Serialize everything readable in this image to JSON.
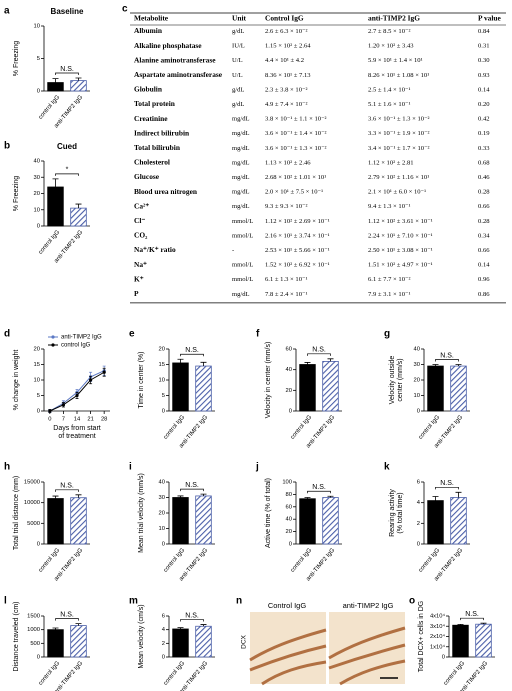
{
  "chart_data": [
    {
      "type": "bar",
      "panel": "a",
      "title": "Baseline",
      "ylabel": "% Freezing",
      "categories": [
        "control IgG",
        "anti-TIMP2 IgG"
      ],
      "values": [
        1.3,
        1.6
      ],
      "errors": [
        0.6,
        0.4
      ],
      "colors": [
        "#000000",
        "#4a5ea8"
      ],
      "ylim": [
        0,
        10
      ],
      "yticks": [
        0,
        5,
        10
      ],
      "annotation": "N.S."
    },
    {
      "type": "bar",
      "panel": "b",
      "title": "Cued",
      "ylabel": "% Freezing",
      "categories": [
        "control IgG",
        "anti-TIMP2 IgG"
      ],
      "values": [
        24,
        11
      ],
      "errors": [
        5,
        2.5
      ],
      "colors": [
        "#000000",
        "#4a5ea8"
      ],
      "ylim": [
        0,
        40
      ],
      "yticks": [
        0,
        10,
        20,
        30,
        40
      ],
      "annotation": "*"
    },
    {
      "type": "line",
      "panel": "d",
      "ylabel": "% change in weight",
      "xlabel": [
        "Days from start",
        "of treatment"
      ],
      "x": [
        0,
        7,
        14,
        21,
        28
      ],
      "xlim": [
        -3,
        31
      ],
      "xticks": [
        0,
        7,
        14,
        21,
        28
      ],
      "ylim": [
        0,
        20
      ],
      "yticks": [
        0,
        5,
        10,
        15,
        20
      ],
      "legend": "upper left",
      "series": [
        {
          "name": "anti-TIMP2 IgG",
          "color": "#5b78c4",
          "values": [
            0,
            2.5,
            6,
            11,
            13
          ],
          "errors": [
            0.5,
            0.8,
            1,
            1.5,
            1.5
          ]
        },
        {
          "name": "control IgG",
          "color": "#000000",
          "values": [
            0,
            2,
            5,
            10,
            12.5
          ],
          "errors": [
            0.5,
            0.7,
            1,
            1.2,
            1.3
          ]
        }
      ]
    },
    {
      "type": "bar",
      "panel": "e",
      "ylabel": "Time in center (%)",
      "categories": [
        "control IgG",
        "anti-TIMP2 IgG"
      ],
      "values": [
        15.5,
        14.5
      ],
      "errors": [
        1.2,
        1.2
      ],
      "colors": [
        "#000000",
        "#4a5ea8"
      ],
      "ylim": [
        0,
        20
      ],
      "yticks": [
        0,
        5,
        10,
        15,
        20
      ],
      "annotation": "N.S."
    },
    {
      "type": "bar",
      "panel": "f",
      "ylabel": "Velocity in center (mm/s)",
      "categories": [
        "control IgG",
        "anti-TIMP2 IgG"
      ],
      "values": [
        45,
        48
      ],
      "errors": [
        2,
        2.5
      ],
      "colors": [
        "#000000",
        "#4a5ea8"
      ],
      "ylim": [
        0,
        60
      ],
      "yticks": [
        0,
        20,
        40,
        60
      ],
      "annotation": "N.S."
    },
    {
      "type": "bar",
      "panel": "g",
      "ylabel": [
        "Velocity outside",
        "center (mm/s)"
      ],
      "categories": [
        "control IgG",
        "anti-TIMP2 IgG"
      ],
      "values": [
        29,
        29
      ],
      "errors": [
        1,
        1
      ],
      "colors": [
        "#000000",
        "#4a5ea8"
      ],
      "ylim": [
        0,
        40
      ],
      "yticks": [
        0,
        10,
        20,
        30,
        40
      ],
      "annotation": "N.S."
    },
    {
      "type": "bar",
      "panel": "h",
      "ylabel": "Total trial distance (mm)",
      "categories": [
        "control IgG",
        "anti-TIMP2 IgG"
      ],
      "values": [
        11000,
        11200
      ],
      "errors": [
        600,
        700
      ],
      "colors": [
        "#000000",
        "#4a5ea8"
      ],
      "ylim": [
        0,
        15000
      ],
      "yticks": [
        0,
        5000,
        10000,
        15000
      ],
      "annotation": "N.S."
    },
    {
      "type": "bar",
      "panel": "i",
      "ylabel": "Mean trial velocity (mm/s)",
      "categories": [
        "control IgG",
        "anti-TIMP2 IgG"
      ],
      "values": [
        30,
        31
      ],
      "errors": [
        1,
        1.2
      ],
      "colors": [
        "#000000",
        "#4a5ea8"
      ],
      "ylim": [
        0,
        40
      ],
      "yticks": [
        0,
        10,
        20,
        30,
        40
      ],
      "annotation": "N.S."
    },
    {
      "type": "bar",
      "panel": "j",
      "ylabel": "Active time (% of total)",
      "categories": [
        "control IgG",
        "anti-TIMP2 IgG"
      ],
      "values": [
        73,
        75
      ],
      "errors": [
        2,
        2
      ],
      "colors": [
        "#000000",
        "#4a5ea8"
      ],
      "ylim": [
        0,
        100
      ],
      "yticks": [
        0,
        20,
        40,
        60,
        80,
        100
      ],
      "annotation": "N.S."
    },
    {
      "type": "bar",
      "panel": "k",
      "ylabel": [
        "Rearing activity",
        "(% total time)"
      ],
      "categories": [
        "control IgG",
        "anti-TIMP2 IgG"
      ],
      "values": [
        4.2,
        4.5
      ],
      "errors": [
        0.4,
        0.5
      ],
      "colors": [
        "#000000",
        "#4a5ea8"
      ],
      "ylim": [
        0,
        6
      ],
      "yticks": [
        0,
        2,
        4,
        6
      ],
      "annotation": "N.S."
    },
    {
      "type": "bar",
      "panel": "l",
      "ylabel": "Distance traveled (cm)",
      "categories": [
        "control IgG",
        "anti-TIMP2 IgG"
      ],
      "values": [
        1000,
        1150
      ],
      "errors": [
        60,
        70
      ],
      "colors": [
        "#000000",
        "#4a5ea8"
      ],
      "ylim": [
        0,
        1500
      ],
      "yticks": [
        0,
        500,
        1000,
        1500
      ],
      "annotation": "N.S."
    },
    {
      "type": "bar",
      "panel": "m",
      "ylabel": "Mean velocity (cm/s)",
      "categories": [
        "control IgG",
        "anti-TIMP2 IgG"
      ],
      "values": [
        4.1,
        4.5
      ],
      "errors": [
        0.2,
        0.25
      ],
      "colors": [
        "#000000",
        "#4a5ea8"
      ],
      "ylim": [
        0,
        6
      ],
      "yticks": [
        0,
        2,
        4,
        6
      ],
      "annotation": "N.S."
    },
    {
      "type": "bar",
      "panel": "o",
      "ylabel": "Total DCX+ cells in DG",
      "categories": [
        "control IgG",
        "anti-TIMP2 IgG"
      ],
      "values": [
        31000,
        32000
      ],
      "errors": [
        800,
        1000
      ],
      "colors": [
        "#000000",
        "#4a5ea8"
      ],
      "ylim": [
        0,
        40000
      ],
      "yticks": [
        0,
        {
          "value": 10000,
          "label": "1x10⁴"
        },
        {
          "value": 20000,
          "label": "2x10⁴"
        },
        {
          "value": 30000,
          "label": "3x10⁴"
        },
        {
          "value": 40000,
          "label": "4x10⁴"
        }
      ],
      "annotation": "N.S."
    }
  ],
  "table": {
    "panel": "c",
    "columns": [
      "Metabolite",
      "Unit",
      "Control IgG",
      "anti-TIMP2 IgG",
      "P value"
    ],
    "rows": [
      [
        "Albumin",
        "g/dL",
        "2.6 ± 6.3 × 10⁻²",
        "2.7 ± 8.5 × 10⁻²",
        "0.84"
      ],
      [
        "Alkaline phosphatase",
        "IU/L",
        "1.15 × 10² ± 2.64",
        "1.20 × 10² ± 3.43",
        "0.31"
      ],
      [
        "Alanine aminotransferase",
        "U/L",
        "4.4 × 10¹ ± 4.2",
        "5.9 × 10¹ ± 1.4 × 10¹",
        "0.30"
      ],
      [
        "Aspartate aminotransferase",
        "U/L",
        "8.36 × 10¹ ± 7.13",
        "8.26 × 10¹ ± 1.08 × 10¹",
        "0.93"
      ],
      [
        "Globulin",
        "g/dL",
        "2.3 ± 3.8 × 10⁻²",
        "2.5 ± 1.4 × 10⁻¹",
        "0.14"
      ],
      [
        "Total protein",
        "g/dL",
        "4.9 ± 7.4 × 10⁻²",
        "5.1 ± 1.6 × 10⁻¹",
        "0.20"
      ],
      [
        "Creatinine",
        "mg/dL",
        "3.8 × 10⁻¹ ± 1.1 × 10⁻²",
        "3.6 × 10⁻¹ ± 1.3 × 10⁻²",
        "0.42"
      ],
      [
        "Indirect bilirubin",
        "mg/dL",
        "3.6 × 10⁻¹ ± 1.4 × 10⁻²",
        "3.3 × 10⁻¹ ± 1.9 × 10⁻²",
        "0.19"
      ],
      [
        "Total bilirubin",
        "mg/dL",
        "3.6 × 10⁻¹ ± 1.3 × 10⁻²",
        "3.4 × 10⁻¹ ± 1.7 × 10⁻²",
        "0.33"
      ],
      [
        "Cholesterol",
        "mg/dL",
        "1.13 × 10² ± 2.46",
        "1.12 × 10² ± 2.81",
        "0.68"
      ],
      [
        "Glucose",
        "mg/dL",
        "2.68 × 10² ± 1.01 × 10¹",
        "2.79 × 10² ± 1.16 × 10¹",
        "0.46"
      ],
      [
        "Blood urea nitrogen",
        "mg/dL",
        "2.0 × 10¹ ± 7.5 × 10⁻¹",
        "2.1 × 10¹ ± 6.0 × 10⁻¹",
        "0.28"
      ],
      [
        "Ca²⁺",
        "mg/dL",
        "9.3 ± 9.3 × 10⁻²",
        "9.4 ± 1.3 × 10⁻¹",
        "0.66"
      ],
      [
        "Cl⁻",
        "mmol/L",
        "1.12 × 10² ± 2.69 × 10⁻¹",
        "1.12 × 10² ± 3.61 × 10⁻¹",
        "0.28"
      ],
      [
        "CO₂",
        "mmol/L",
        "2.16 × 10¹ ± 3.74 × 10⁻¹",
        "2.24 × 10¹ ± 7.10 × 10⁻¹",
        "0.34"
      ],
      [
        "Na⁺/K⁺ ratio",
        "-",
        "2.53 × 10¹ ± 5.66 × 10⁻¹",
        "2.50 × 10¹ ± 3.08 × 10⁻¹",
        "0.66"
      ],
      [
        "Na⁺",
        "mmol/L",
        "1.52 × 10² ± 6.92 × 10⁻¹",
        "1.51 × 10² ± 4.97 × 10⁻¹",
        "0.14"
      ],
      [
        "K⁺",
        "mmol/L",
        "6.1 ± 1.3 × 10⁻¹",
        "6.1 ± 7.7 × 10⁻²",
        "0.96"
      ],
      [
        "P",
        "mg/dL",
        "7.8 ± 2.4 × 10⁻¹",
        "7.9 ± 3.1 × 10⁻¹",
        "0.86"
      ]
    ]
  },
  "image_panel": {
    "panel": "n",
    "labels": [
      "Control IgG",
      "anti-TIMP2 IgG"
    ],
    "stain": "DCX"
  }
}
